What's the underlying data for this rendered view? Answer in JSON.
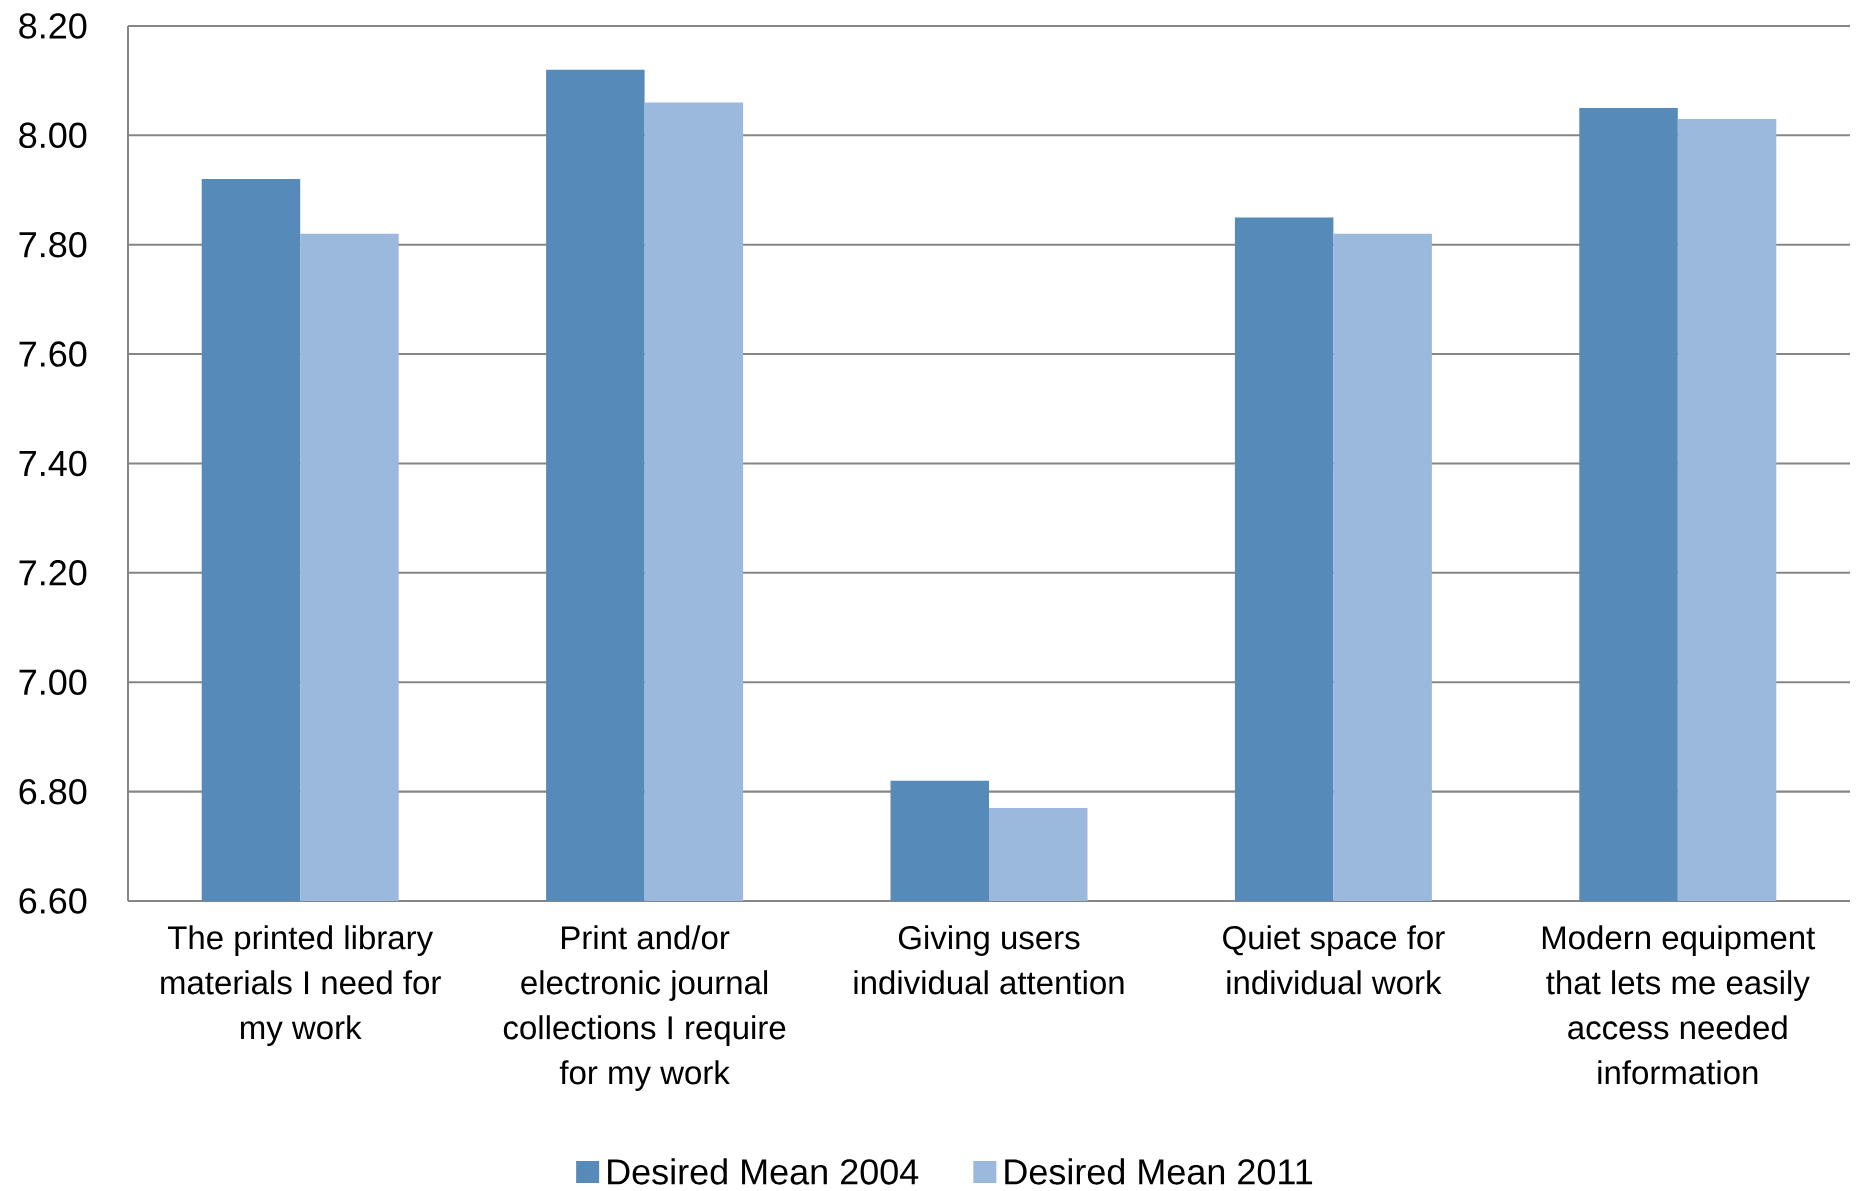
{
  "chart_data": {
    "type": "bar",
    "categories": [
      "The printed library materials I need for my work",
      "Print and/or electronic journal collections I require for my work",
      "Giving users individual attention",
      "Quiet space for individual work",
      "Modern equipment that lets me easily access needed information"
    ],
    "series": [
      {
        "name": "Desired Mean 2004",
        "color": "#558ab9",
        "values": [
          7.92,
          8.12,
          6.82,
          7.85,
          8.05
        ]
      },
      {
        "name": "Desired Mean 2011",
        "color": "#9ab9dd",
        "values": [
          7.82,
          8.06,
          6.77,
          7.82,
          8.03
        ]
      }
    ],
    "ylim": [
      6.6,
      8.2
    ],
    "yticks": [
      {
        "value": 6.6,
        "label": "6.60"
      },
      {
        "value": 6.8,
        "label": "6.80"
      },
      {
        "value": 7.0,
        "label": "7.00"
      },
      {
        "value": 7.2,
        "label": "7.20"
      },
      {
        "value": 7.4,
        "label": "7.40"
      },
      {
        "value": 7.6,
        "label": "7.60"
      },
      {
        "value": 7.8,
        "label": "7.80"
      },
      {
        "value": 8.0,
        "label": "8.00"
      },
      {
        "value": 8.2,
        "label": "8.20"
      }
    ],
    "grid": "y",
    "legend": "bottom"
  }
}
